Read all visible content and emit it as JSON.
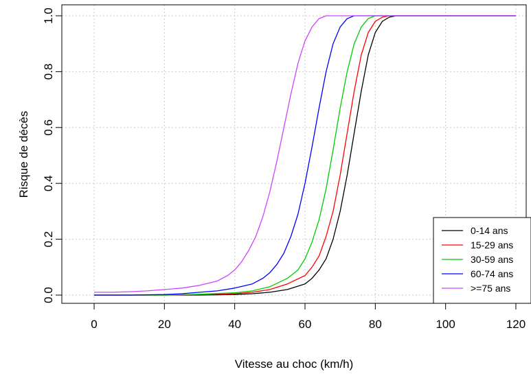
{
  "chart_data": {
    "type": "line",
    "title": "",
    "xlabel": "Vitesse au choc (km/h)",
    "ylabel": "Risque de décès",
    "xlim": [
      0,
      120
    ],
    "ylim": [
      0,
      1
    ],
    "xticks": [
      0,
      20,
      40,
      60,
      80,
      100,
      120
    ],
    "yticks": [
      0.0,
      0.2,
      0.4,
      0.6,
      0.8,
      1.0
    ],
    "ytick_labels": [
      "0.0",
      "0.2",
      "0.4",
      "0.6",
      "0.8",
      "1.0"
    ],
    "grid": true,
    "legend_position": "bottom-right",
    "series": [
      {
        "name": "0-14 ans",
        "color": "#000000",
        "x": [
          0,
          10,
          20,
          30,
          40,
          45,
          50,
          55,
          60,
          62,
          64,
          66,
          68,
          70,
          72,
          74,
          76,
          78,
          80,
          82,
          84,
          86,
          90,
          100,
          120
        ],
        "y": [
          0,
          0,
          0,
          0,
          0.002,
          0.005,
          0.01,
          0.02,
          0.04,
          0.06,
          0.09,
          0.13,
          0.2,
          0.3,
          0.43,
          0.58,
          0.73,
          0.86,
          0.94,
          0.98,
          0.995,
          1,
          1,
          1,
          1
        ]
      },
      {
        "name": "15-29 ans",
        "color": "#ff0000",
        "x": [
          0,
          10,
          20,
          30,
          40,
          45,
          50,
          55,
          60,
          62,
          64,
          66,
          68,
          70,
          72,
          74,
          76,
          78,
          80,
          82,
          84,
          90,
          100,
          120
        ],
        "y": [
          0,
          0,
          0,
          0.002,
          0.005,
          0.01,
          0.02,
          0.04,
          0.07,
          0.1,
          0.14,
          0.21,
          0.3,
          0.43,
          0.58,
          0.73,
          0.86,
          0.94,
          0.98,
          0.995,
          1,
          1,
          1,
          1
        ]
      },
      {
        "name": "30-59 ans",
        "color": "#00cc00",
        "x": [
          0,
          10,
          20,
          30,
          40,
          45,
          50,
          55,
          58,
          60,
          62,
          64,
          66,
          68,
          70,
          72,
          74,
          76,
          78,
          80,
          85,
          90,
          100,
          120
        ],
        "y": [
          0,
          0,
          0,
          0.003,
          0.008,
          0.015,
          0.03,
          0.06,
          0.09,
          0.13,
          0.19,
          0.27,
          0.38,
          0.52,
          0.67,
          0.8,
          0.9,
          0.96,
          0.99,
          1,
          1,
          1,
          1,
          1
        ]
      },
      {
        "name": "60-74 ans",
        "color": "#0000ff",
        "x": [
          0,
          10,
          20,
          25,
          30,
          35,
          40,
          45,
          48,
          50,
          52,
          54,
          56,
          58,
          60,
          62,
          64,
          66,
          68,
          70,
          72,
          74,
          76,
          80,
          90,
          100,
          120
        ],
        "y": [
          0,
          0,
          0.002,
          0.005,
          0.01,
          0.015,
          0.025,
          0.04,
          0.06,
          0.08,
          0.11,
          0.15,
          0.21,
          0.29,
          0.4,
          0.53,
          0.67,
          0.8,
          0.9,
          0.96,
          0.99,
          1,
          1,
          1,
          1,
          1,
          1
        ]
      },
      {
        "name": ">=75 ans",
        "color": "#cc44ff",
        "x": [
          0,
          5,
          10,
          15,
          20,
          25,
          30,
          35,
          38,
          40,
          42,
          44,
          46,
          48,
          50,
          52,
          54,
          56,
          58,
          60,
          62,
          64,
          66,
          68,
          70,
          80,
          100,
          120
        ],
        "y": [
          0.01,
          0.01,
          0.012,
          0.015,
          0.02,
          0.025,
          0.035,
          0.05,
          0.07,
          0.09,
          0.12,
          0.16,
          0.21,
          0.28,
          0.37,
          0.48,
          0.6,
          0.72,
          0.83,
          0.91,
          0.96,
          0.99,
          1,
          1,
          1,
          1,
          1,
          1
        ]
      }
    ]
  }
}
